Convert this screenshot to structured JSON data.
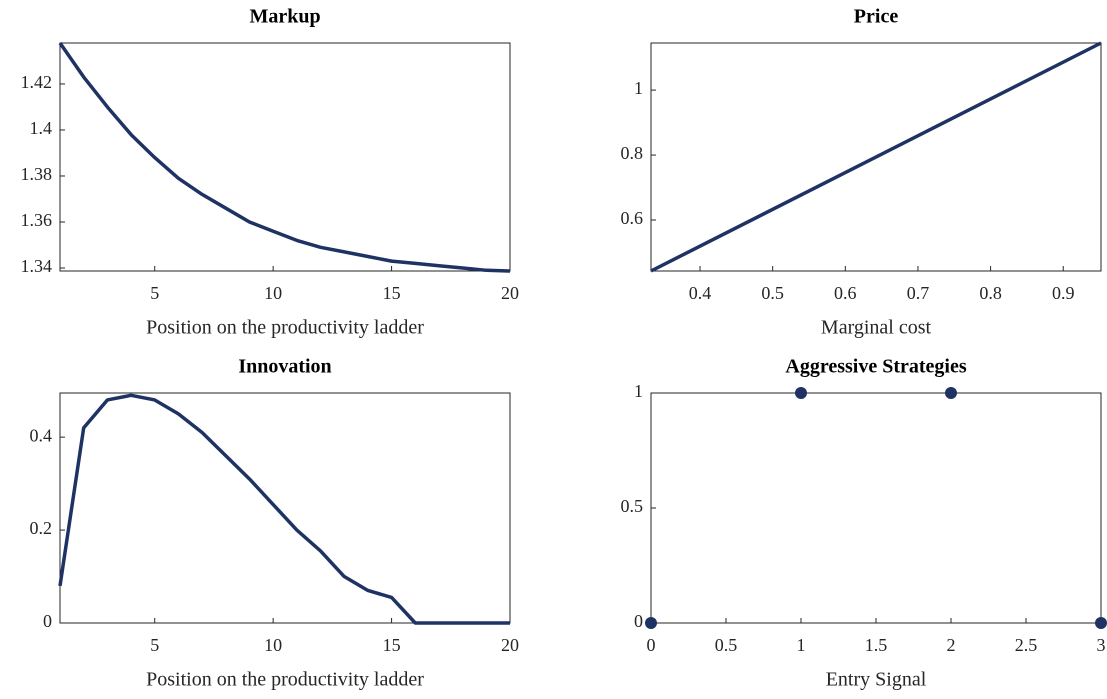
{
  "chart_data": [
    {
      "type": "line",
      "title": "Markup",
      "xlabel": "Position on the productivity ladder",
      "color": "#1f3264",
      "x": [
        1,
        2,
        3,
        4,
        5,
        6,
        7,
        8,
        9,
        10,
        11,
        12,
        13,
        14,
        15,
        16,
        17,
        18,
        19,
        20
      ],
      "values": [
        1.4378,
        1.423,
        1.41,
        1.398,
        1.388,
        1.379,
        1.372,
        1.366,
        1.36,
        1.356,
        1.352,
        1.349,
        1.347,
        1.345,
        1.343,
        1.342,
        1.341,
        1.34,
        1.339,
        1.3387
      ],
      "xlim": [
        1,
        20
      ],
      "ylim": [
        1.3387,
        1.4378
      ],
      "xticks": [
        5,
        10,
        15,
        20
      ],
      "yticks": [
        1.34,
        1.36,
        1.38,
        1.4,
        1.42
      ]
    },
    {
      "type": "line",
      "title": "Price",
      "xlabel": "Marginal cost",
      "color": "#1f3264",
      "x": [
        0.3325,
        0.952
      ],
      "values": [
        0.443,
        1.145
      ],
      "xlim": [
        0.3325,
        0.952
      ],
      "ylim": [
        0.443,
        1.145
      ],
      "xticks": [
        0.4,
        0.5,
        0.6,
        0.7,
        0.8,
        0.9
      ],
      "yticks": [
        0.6,
        0.8,
        1
      ]
    },
    {
      "type": "line",
      "title": "Innovation",
      "xlabel": "Position on the productivity ladder",
      "color": "#1f3264",
      "x": [
        1,
        2,
        3,
        4,
        5,
        6,
        7,
        8,
        9,
        10,
        11,
        12,
        13,
        14,
        15,
        16,
        17,
        18,
        19,
        20
      ],
      "values": [
        0.08,
        0.42,
        0.48,
        0.49,
        0.48,
        0.45,
        0.41,
        0.36,
        0.31,
        0.255,
        0.2,
        0.155,
        0.1,
        0.07,
        0.055,
        0,
        0,
        0,
        0,
        0
      ],
      "xlim": [
        1,
        20
      ],
      "ylim": [
        0,
        0.495
      ],
      "xticks": [
        5,
        10,
        15,
        20
      ],
      "yticks": [
        0,
        0.2,
        0.4
      ]
    },
    {
      "type": "scatter",
      "title": "Aggressive Strategies",
      "xlabel": "Entry Signal",
      "color": "#1f3264",
      "x": [
        0,
        1,
        2,
        3
      ],
      "values": [
        0,
        1,
        1,
        0
      ],
      "xlim": [
        0,
        3
      ],
      "ylim": [
        0,
        1
      ],
      "xticks": [
        0,
        0.5,
        1,
        1.5,
        2,
        2.5,
        3
      ],
      "yticks": [
        0,
        0.5,
        1
      ]
    }
  ]
}
